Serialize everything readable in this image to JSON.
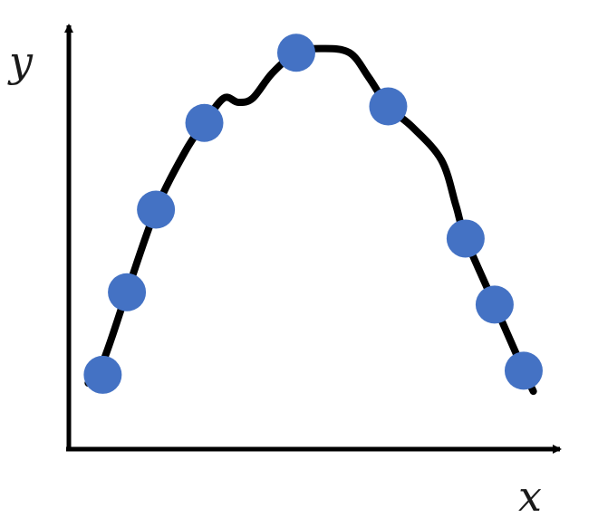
{
  "chart_data": {
    "type": "scatter",
    "title": "",
    "xlabel": "x",
    "ylabel": "y",
    "grid": false,
    "legend": "none",
    "xlim": [
      0,
      10
    ],
    "ylim": [
      0,
      10
    ],
    "points": [
      {
        "x": 0.7,
        "y": 1.8
      },
      {
        "x": 1.2,
        "y": 3.8
      },
      {
        "x": 1.8,
        "y": 5.8
      },
      {
        "x": 2.8,
        "y": 7.9
      },
      {
        "x": 4.7,
        "y": 9.6
      },
      {
        "x": 6.6,
        "y": 8.3
      },
      {
        "x": 8.2,
        "y": 5.1
      },
      {
        "x": 8.8,
        "y": 3.5
      },
      {
        "x": 9.4,
        "y": 1.9
      }
    ],
    "curve": [
      {
        "x": 0.4,
        "y": 1.6
      },
      {
        "x": 0.7,
        "y": 2.1
      },
      {
        "x": 1.2,
        "y": 3.8
      },
      {
        "x": 1.8,
        "y": 5.8
      },
      {
        "x": 2.4,
        "y": 7.2
      },
      {
        "x": 2.8,
        "y": 7.9
      },
      {
        "x": 3.2,
        "y": 8.5
      },
      {
        "x": 3.5,
        "y": 8.4
      },
      {
        "x": 3.8,
        "y": 8.5
      },
      {
        "x": 4.2,
        "y": 9.1
      },
      {
        "x": 4.7,
        "y": 9.6
      },
      {
        "x": 5.2,
        "y": 9.7
      },
      {
        "x": 5.8,
        "y": 9.6
      },
      {
        "x": 6.2,
        "y": 9.0
      },
      {
        "x": 6.6,
        "y": 8.3
      },
      {
        "x": 7.1,
        "y": 7.8
      },
      {
        "x": 7.7,
        "y": 7.0
      },
      {
        "x": 8.0,
        "y": 5.9
      },
      {
        "x": 8.2,
        "y": 5.1
      },
      {
        "x": 8.8,
        "y": 3.5
      },
      {
        "x": 9.4,
        "y": 1.9
      },
      {
        "x": 9.6,
        "y": 1.4
      }
    ],
    "colors": {
      "point": "#4472c4",
      "curve": "#000000",
      "axis": "#000000"
    }
  }
}
